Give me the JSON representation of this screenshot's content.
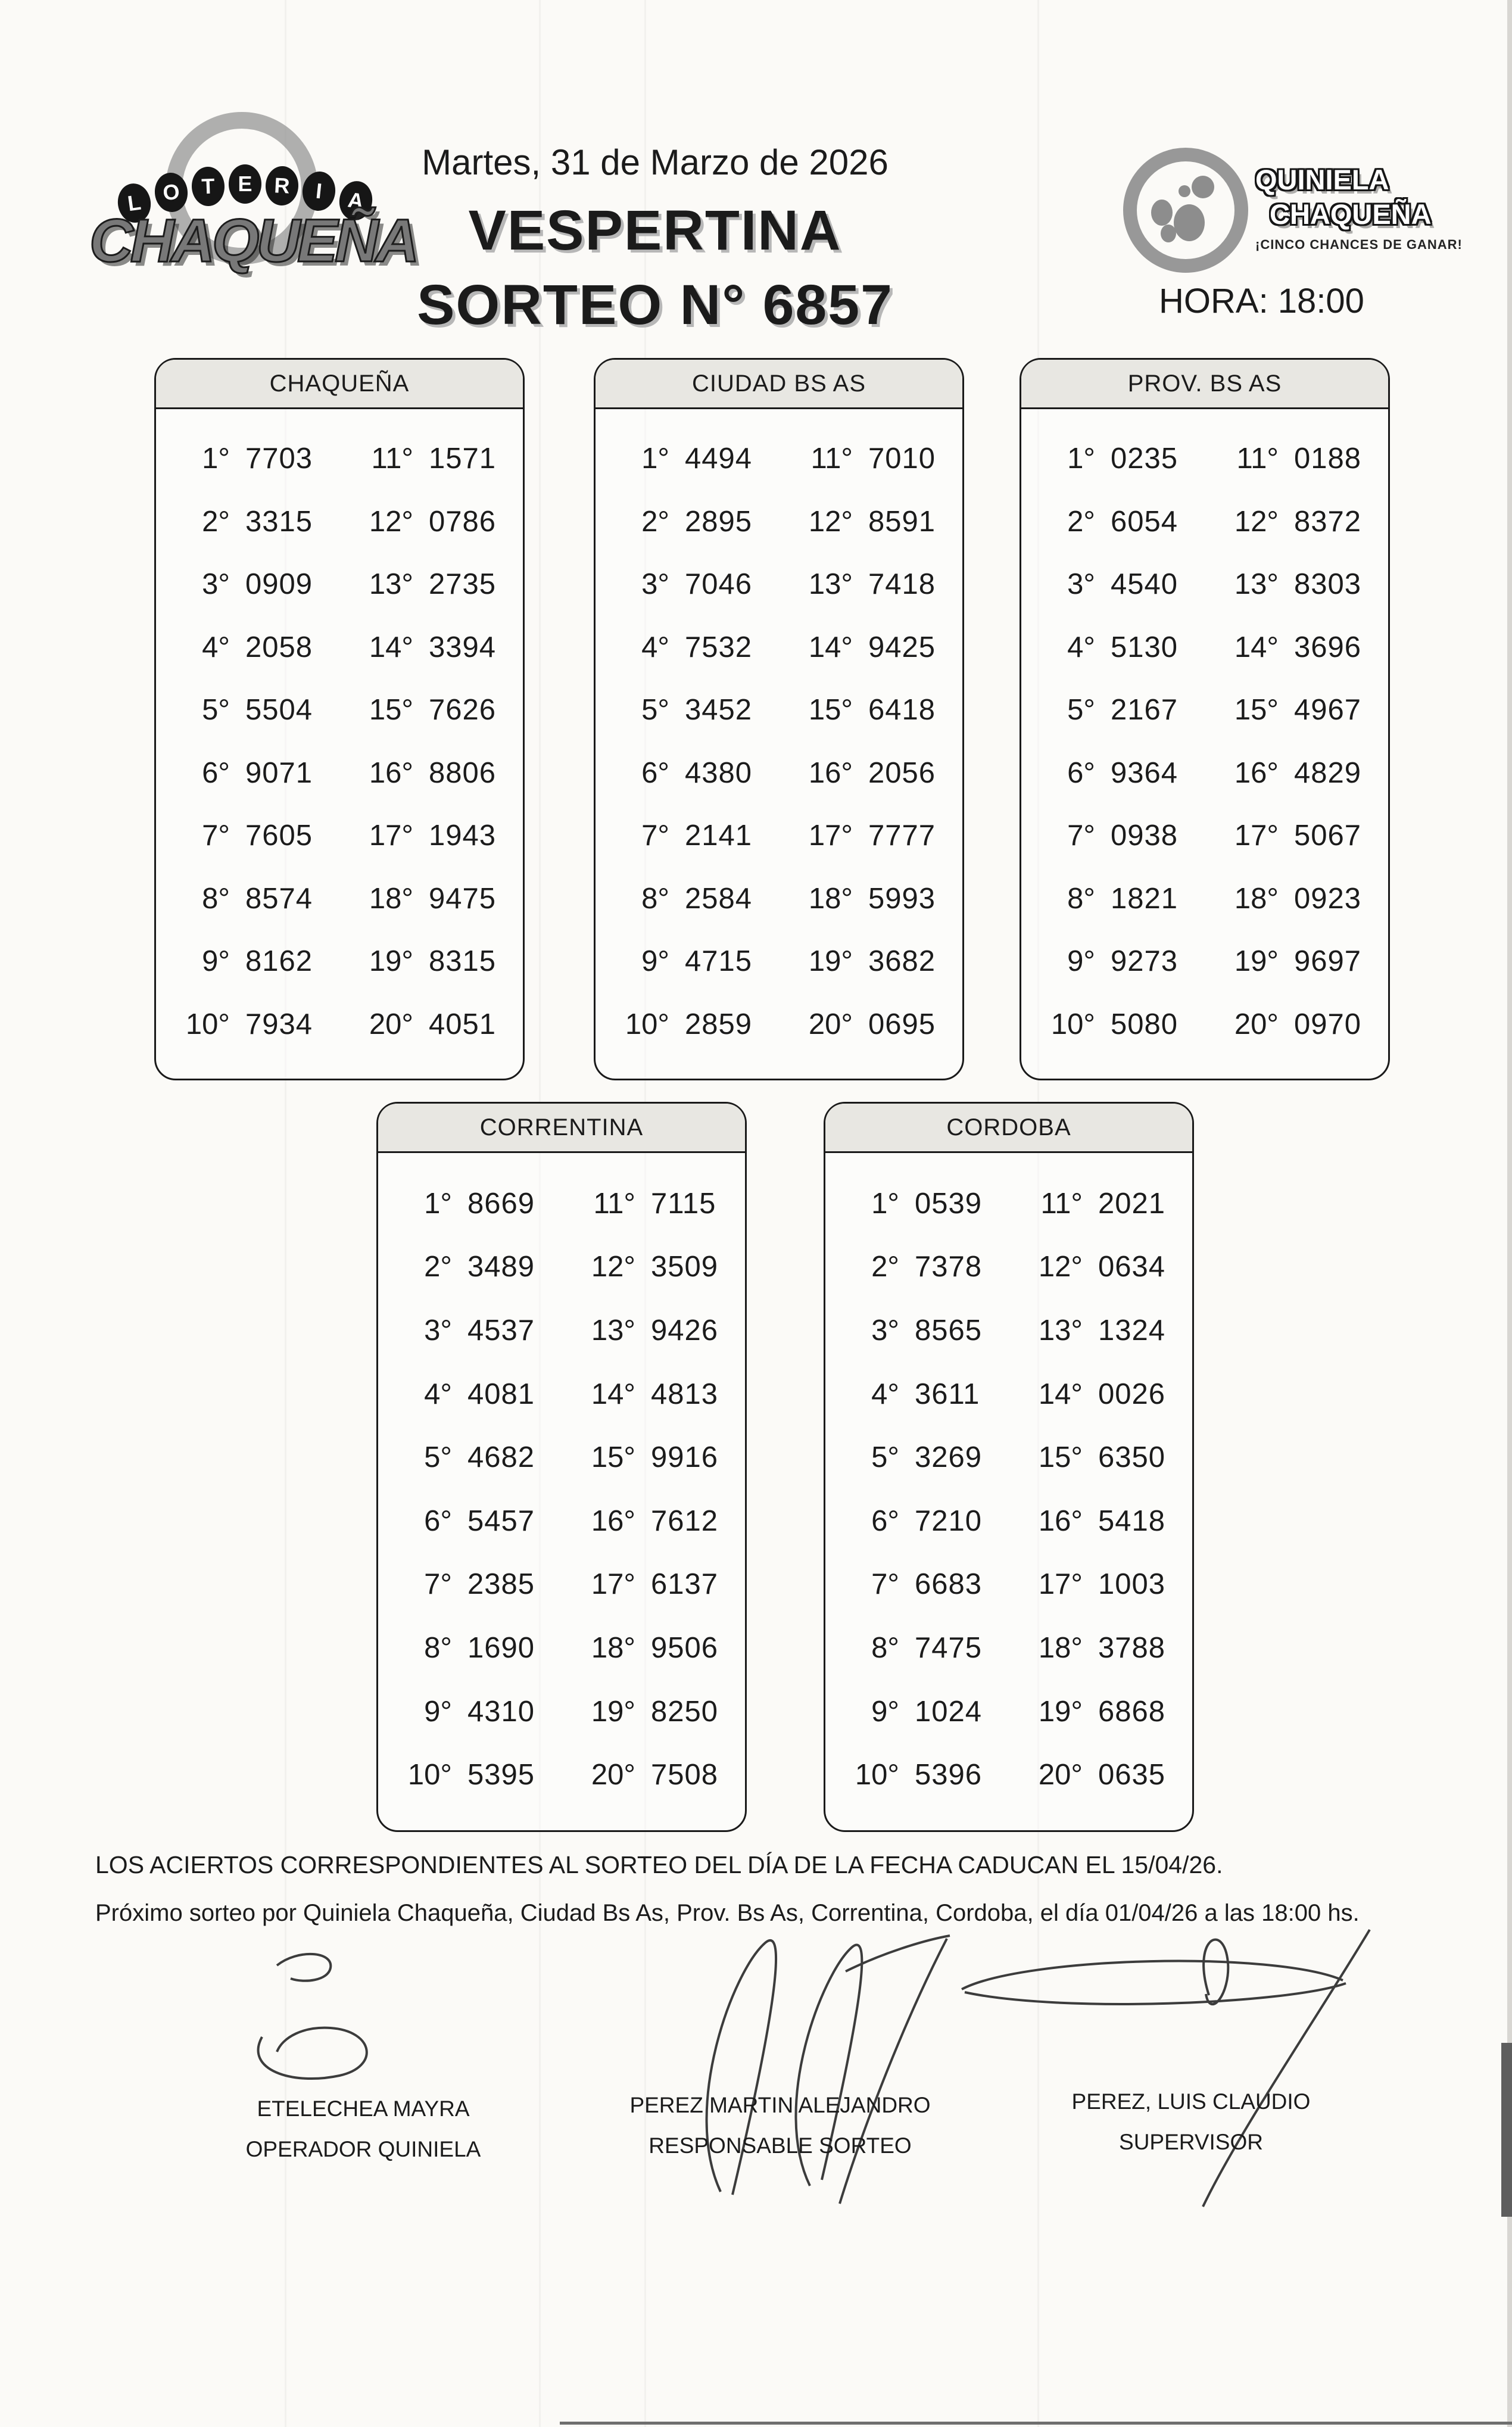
{
  "header": {
    "logo_left": {
      "arc_word": "LOTERIA",
      "name": "CHAQUEÑA"
    },
    "date": "Martes, 31 de Marzo de 2026",
    "draw_type": "VESPERTINA",
    "draw_number": "SORTEO N° 6857",
    "logo_right": {
      "line1": "QUINIELA",
      "line2": "CHAQUEÑA",
      "tagline": "¡CINCO CHANCES DE GANAR!"
    },
    "hora": "HORA: 18:00"
  },
  "tables": [
    {
      "title": "CHAQUEÑA",
      "rows": [
        [
          "1°",
          "7703",
          "11°",
          "1571"
        ],
        [
          "2°",
          "3315",
          "12°",
          "0786"
        ],
        [
          "3°",
          "0909",
          "13°",
          "2735"
        ],
        [
          "4°",
          "2058",
          "14°",
          "3394"
        ],
        [
          "5°",
          "5504",
          "15°",
          "7626"
        ],
        [
          "6°",
          "9071",
          "16°",
          "8806"
        ],
        [
          "7°",
          "7605",
          "17°",
          "1943"
        ],
        [
          "8°",
          "8574",
          "18°",
          "9475"
        ],
        [
          "9°",
          "8162",
          "19°",
          "8315"
        ],
        [
          "10°",
          "7934",
          "20°",
          "4051"
        ]
      ]
    },
    {
      "title": "CIUDAD BS AS",
      "rows": [
        [
          "1°",
          "4494",
          "11°",
          "7010"
        ],
        [
          "2°",
          "2895",
          "12°",
          "8591"
        ],
        [
          "3°",
          "7046",
          "13°",
          "7418"
        ],
        [
          "4°",
          "7532",
          "14°",
          "9425"
        ],
        [
          "5°",
          "3452",
          "15°",
          "6418"
        ],
        [
          "6°",
          "4380",
          "16°",
          "2056"
        ],
        [
          "7°",
          "2141",
          "17°",
          "7777"
        ],
        [
          "8°",
          "2584",
          "18°",
          "5993"
        ],
        [
          "9°",
          "4715",
          "19°",
          "3682"
        ],
        [
          "10°",
          "2859",
          "20°",
          "0695"
        ]
      ]
    },
    {
      "title": "PROV. BS AS",
      "rows": [
        [
          "1°",
          "0235",
          "11°",
          "0188"
        ],
        [
          "2°",
          "6054",
          "12°",
          "8372"
        ],
        [
          "3°",
          "4540",
          "13°",
          "8303"
        ],
        [
          "4°",
          "5130",
          "14°",
          "3696"
        ],
        [
          "5°",
          "2167",
          "15°",
          "4967"
        ],
        [
          "6°",
          "9364",
          "16°",
          "4829"
        ],
        [
          "7°",
          "0938",
          "17°",
          "5067"
        ],
        [
          "8°",
          "1821",
          "18°",
          "0923"
        ],
        [
          "9°",
          "9273",
          "19°",
          "9697"
        ],
        [
          "10°",
          "5080",
          "20°",
          "0970"
        ]
      ]
    },
    {
      "title": "CORRENTINA",
      "rows": [
        [
          "1°",
          "8669",
          "11°",
          "7115"
        ],
        [
          "2°",
          "3489",
          "12°",
          "3509"
        ],
        [
          "3°",
          "4537",
          "13°",
          "9426"
        ],
        [
          "4°",
          "4081",
          "14°",
          "4813"
        ],
        [
          "5°",
          "4682",
          "15°",
          "9916"
        ],
        [
          "6°",
          "5457",
          "16°",
          "7612"
        ],
        [
          "7°",
          "2385",
          "17°",
          "6137"
        ],
        [
          "8°",
          "1690",
          "18°",
          "9506"
        ],
        [
          "9°",
          "4310",
          "19°",
          "8250"
        ],
        [
          "10°",
          "5395",
          "20°",
          "7508"
        ]
      ]
    },
    {
      "title": "CORDOBA",
      "rows": [
        [
          "1°",
          "0539",
          "11°",
          "2021"
        ],
        [
          "2°",
          "7378",
          "12°",
          "0634"
        ],
        [
          "3°",
          "8565",
          "13°",
          "1324"
        ],
        [
          "4°",
          "3611",
          "14°",
          "0026"
        ],
        [
          "5°",
          "3269",
          "15°",
          "6350"
        ],
        [
          "6°",
          "7210",
          "16°",
          "5418"
        ],
        [
          "7°",
          "6683",
          "17°",
          "1003"
        ],
        [
          "8°",
          "7475",
          "18°",
          "3788"
        ],
        [
          "9°",
          "1024",
          "19°",
          "6868"
        ],
        [
          "10°",
          "5396",
          "20°",
          "0635"
        ]
      ]
    }
  ],
  "footer": {
    "line1": "LOS ACIERTOS CORRESPONDIENTES AL SORTEO DEL DÍA DE LA FECHA CADUCAN EL 15/04/26.",
    "line2": "Próximo sorteo por Quiniela Chaqueña, Ciudad Bs As, Prov. Bs As, Correntina, Cordoba,  el día 01/04/26 a las 18:00 hs."
  },
  "signatures": [
    {
      "name": "ETELECHEA MAYRA",
      "role": "OPERADOR QUINIELA"
    },
    {
      "name": "PEREZ MARTIN ALEJANDRO",
      "role": "RESPONSABLE SORTEO"
    },
    {
      "name": "PEREZ, LUIS CLAUDIO",
      "role": "SUPERVISOR"
    }
  ]
}
